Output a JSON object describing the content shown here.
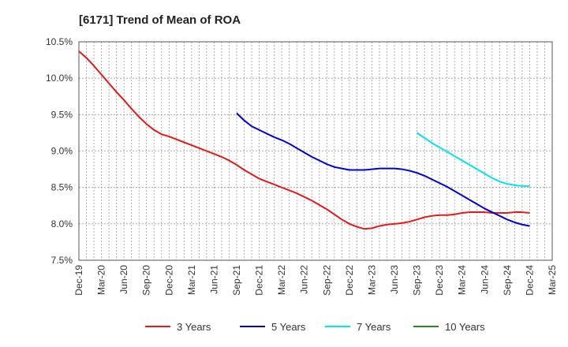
{
  "chart_data": {
    "type": "line",
    "title": "[6171]  Trend of Mean of ROA",
    "xlabel": "",
    "ylabel": "",
    "y_tick_labels": [
      "7.5%",
      "8.0%",
      "8.5%",
      "9.0%",
      "9.5%",
      "10.0%",
      "10.5%"
    ],
    "y_ticks": [
      7.5,
      8.0,
      8.5,
      9.0,
      9.5,
      10.0,
      10.5
    ],
    "ylim": [
      7.5,
      10.5
    ],
    "x_tick_labels": [
      "Dec-19",
      "Mar-20",
      "Jun-20",
      "Sep-20",
      "Dec-20",
      "Mar-21",
      "Jun-21",
      "Sep-21",
      "Dec-21",
      "Mar-22",
      "Jun-22",
      "Sep-22",
      "Dec-22",
      "Mar-23",
      "Jun-23",
      "Sep-23",
      "Dec-23",
      "Mar-24",
      "Jun-24",
      "Sep-24",
      "Dec-24",
      "Mar-25"
    ],
    "grid": true,
    "legend_position": "bottom",
    "series": [
      {
        "name": "3 Years",
        "color": "#e31a1c",
        "x": [
          "Dec-19",
          "Jan-20",
          "Feb-20",
          "Mar-20",
          "Apr-20",
          "May-20",
          "Jun-20",
          "Jul-20",
          "Aug-20",
          "Sep-20",
          "Oct-20",
          "Nov-20",
          "Dec-20",
          "Jan-21",
          "Feb-21",
          "Mar-21",
          "Apr-21",
          "May-21",
          "Jun-21",
          "Jul-21",
          "Aug-21",
          "Sep-21",
          "Oct-21",
          "Nov-21",
          "Dec-21",
          "Jan-22",
          "Feb-22",
          "Mar-22",
          "Apr-22",
          "May-22",
          "Jun-22",
          "Jul-22",
          "Aug-22",
          "Sep-22",
          "Oct-22",
          "Nov-22",
          "Dec-22",
          "Jan-23",
          "Feb-23",
          "Mar-23",
          "Apr-23",
          "May-23",
          "Jun-23",
          "Jul-23",
          "Aug-23",
          "Sep-23",
          "Oct-23",
          "Nov-23",
          "Dec-23",
          "Jan-24",
          "Feb-24",
          "Mar-24",
          "Apr-24",
          "May-24",
          "Jun-24",
          "Jul-24",
          "Aug-24",
          "Sep-24",
          "Oct-24",
          "Nov-24",
          "Dec-24"
        ],
        "values": [
          10.37,
          10.28,
          10.17,
          10.05,
          9.93,
          9.81,
          9.7,
          9.58,
          9.47,
          9.37,
          9.29,
          9.23,
          9.2,
          9.16,
          9.12,
          9.08,
          9.04,
          9.0,
          8.96,
          8.92,
          8.87,
          8.81,
          8.74,
          8.68,
          8.62,
          8.58,
          8.54,
          8.5,
          8.46,
          8.42,
          8.37,
          8.32,
          8.26,
          8.2,
          8.13,
          8.06,
          8.0,
          7.96,
          7.93,
          7.94,
          7.97,
          7.99,
          8.0,
          8.01,
          8.03,
          8.06,
          8.09,
          8.11,
          8.12,
          8.12,
          8.13,
          8.15,
          8.16,
          8.16,
          8.16,
          8.15,
          8.15,
          8.15,
          8.16,
          8.16,
          8.15
        ]
      },
      {
        "name": "5 Years",
        "color": "#0000cc",
        "x": [
          "Sep-21",
          "Oct-21",
          "Nov-21",
          "Dec-21",
          "Jan-22",
          "Feb-22",
          "Mar-22",
          "Apr-22",
          "May-22",
          "Jun-22",
          "Jul-22",
          "Aug-22",
          "Sep-22",
          "Oct-22",
          "Nov-22",
          "Dec-22",
          "Jan-23",
          "Feb-23",
          "Mar-23",
          "Apr-23",
          "May-23",
          "Jun-23",
          "Jul-23",
          "Aug-23",
          "Sep-23",
          "Oct-23",
          "Nov-23",
          "Dec-23",
          "Jan-24",
          "Feb-24",
          "Mar-24",
          "Apr-24",
          "May-24",
          "Jun-24",
          "Jul-24",
          "Aug-24",
          "Sep-24",
          "Oct-24",
          "Nov-24",
          "Dec-24"
        ],
        "values": [
          9.52,
          9.42,
          9.34,
          9.29,
          9.24,
          9.19,
          9.15,
          9.1,
          9.04,
          8.98,
          8.92,
          8.87,
          8.82,
          8.78,
          8.76,
          8.74,
          8.74,
          8.74,
          8.75,
          8.76,
          8.76,
          8.76,
          8.75,
          8.73,
          8.7,
          8.66,
          8.61,
          8.56,
          8.51,
          8.45,
          8.39,
          8.33,
          8.27,
          8.21,
          8.16,
          8.11,
          8.06,
          8.02,
          7.99,
          7.97
        ]
      },
      {
        "name": "7 Years",
        "color": "#00e5ee",
        "x": [
          "Sep-23",
          "Oct-23",
          "Nov-23",
          "Dec-23",
          "Jan-24",
          "Feb-24",
          "Mar-24",
          "Apr-24",
          "May-24",
          "Jun-24",
          "Jul-24",
          "Aug-24",
          "Sep-24",
          "Oct-24",
          "Nov-24",
          "Dec-24"
        ],
        "values": [
          9.25,
          9.18,
          9.11,
          9.05,
          8.99,
          8.93,
          8.87,
          8.81,
          8.75,
          8.69,
          8.63,
          8.58,
          8.55,
          8.53,
          8.52,
          8.52
        ]
      },
      {
        "name": "10 Years",
        "color": "#228b22",
        "x": [],
        "values": []
      }
    ]
  }
}
